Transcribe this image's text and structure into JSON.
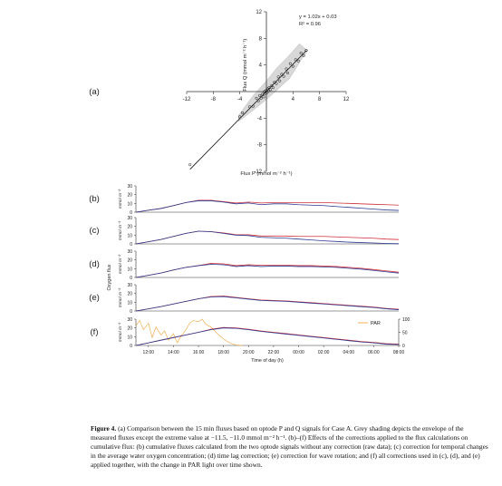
{
  "panel_labels": [
    "(a)",
    "(b)",
    "(c)",
    "(d)",
    "(e)",
    "(f)"
  ],
  "caption": {
    "fig_label": "Figure 4.",
    "text": "(a) Comparison between the 15 min fluxes based on optode P and Q signals for Case A. Grey shading depicts the envelope of the measured fluxes except the extreme value at −11.5, −11.0 mmol m⁻² h⁻¹. (b)–(f) Effects of the corrections applied to the flux calculations on cumulative flux: (b) cumulative fluxes calculated from the two optode signals without any correction (raw data); (c) correction for temporal changes in the average water oxygen concentration; (d) time lag correction; (e) correction for wave rotation; and (f) all corrections used in (c), (d), and (e) applied together, with the change in PAR light over time shown."
  },
  "colors": {
    "series_p": "#2b3a8f",
    "series_q": "#d0303a",
    "par": "#f0b050",
    "shading": "#d8d8d8",
    "axis": "#333333"
  },
  "chart_data": [
    {
      "type": "scatter",
      "panel": "(a)",
      "xlabel": "Flux P (mmol m⁻² h⁻¹)",
      "ylabel": "Flux Q (mmol m⁻² h⁻¹)",
      "xlim": [
        -12,
        12
      ],
      "ylim": [
        -12,
        12
      ],
      "xticks": [
        -12,
        -8,
        -4,
        4,
        8,
        12
      ],
      "yticks": [
        -12,
        -8,
        -4,
        4,
        8,
        12
      ],
      "equation": "y = 1.02x + 0.03",
      "r2": "R² = 0.96",
      "regression": {
        "slope": 1.02,
        "intercept": 0.03,
        "x_range": [
          -11.5,
          6.0
        ]
      },
      "shading_envelope": [
        [
          -4.2,
          -4.5
        ],
        [
          -2,
          -2.8
        ],
        [
          0,
          -1.2
        ],
        [
          2,
          0.6
        ],
        [
          3.5,
          2
        ],
        [
          5.5,
          5.2
        ],
        [
          6.2,
          6.1
        ],
        [
          5,
          7.2
        ],
        [
          3.2,
          5.2
        ],
        [
          1.6,
          3.6
        ],
        [
          0,
          1.6
        ],
        [
          -2,
          -0.6
        ],
        [
          -4.2,
          -3.6
        ]
      ],
      "points": [
        [
          -11.5,
          -11.0
        ],
        [
          -4.0,
          -3.8
        ],
        [
          -3.6,
          -3.2
        ],
        [
          -2.5,
          -2.3
        ],
        [
          -2.0,
          -2.2
        ],
        [
          -1.5,
          -1.0
        ],
        [
          -1.2,
          -1.4
        ],
        [
          -1.0,
          -0.6
        ],
        [
          -0.8,
          -1.0
        ],
        [
          -0.6,
          -0.4
        ],
        [
          -0.4,
          -0.8
        ],
        [
          -0.3,
          0.0
        ],
        [
          -0.2,
          -0.3
        ],
        [
          0.0,
          0.2
        ],
        [
          0.1,
          -0.2
        ],
        [
          0.2,
          0.4
        ],
        [
          0.3,
          0.1
        ],
        [
          0.4,
          0.6
        ],
        [
          0.6,
          0.3
        ],
        [
          0.8,
          0.9
        ],
        [
          1.0,
          0.6
        ],
        [
          1.2,
          1.4
        ],
        [
          1.5,
          1.2
        ],
        [
          1.8,
          2.2
        ],
        [
          2.0,
          1.6
        ],
        [
          2.3,
          2.6
        ],
        [
          2.6,
          2.3
        ],
        [
          3.0,
          3.4
        ],
        [
          3.2,
          2.8
        ],
        [
          3.6,
          4.2
        ],
        [
          4.0,
          3.8
        ],
        [
          4.4,
          4.8
        ],
        [
          4.8,
          4.6
        ],
        [
          5.2,
          5.8
        ],
        [
          5.6,
          5.4
        ],
        [
          6.0,
          6.2
        ]
      ]
    },
    {
      "type": "line",
      "panels": [
        "(b)",
        "(c)",
        "(d)",
        "(e)",
        "(f)"
      ],
      "ylabel_units": "mmol m⁻²",
      "shared_ylabel": "Oxygen flux",
      "xlabel": "Time of day (h)",
      "x_ticks": [
        "12:00",
        "14:00",
        "16:00",
        "18:00",
        "20:00",
        "22:00",
        "00:00",
        "02:00",
        "04:00",
        "06:00",
        "08:00"
      ],
      "x": [
        11,
        12,
        13,
        14,
        15,
        16,
        17,
        18,
        19,
        20,
        21,
        22,
        23,
        24,
        25,
        26,
        27,
        28,
        29,
        30,
        31,
        32
      ],
      "ylim": [
        0,
        30
      ],
      "yticks": [
        0,
        10,
        20,
        30
      ],
      "series_sets": {
        "(b)": {
          "P": [
            0,
            2.2,
            4.2,
            7.5,
            11,
            13,
            13,
            11.5,
            9.5,
            10.5,
            8.5,
            9.5,
            9.5,
            8.5,
            8,
            7.5,
            6.5,
            5.5,
            4.5,
            3.5,
            2.5,
            2
          ],
          "Q": [
            0,
            2.2,
            4.2,
            7.5,
            11,
            13.5,
            13.5,
            12,
            10.5,
            11.5,
            10.5,
            11,
            11,
            11,
            11,
            11,
            10.5,
            10,
            9.5,
            9,
            8.5,
            8
          ]
        },
        "(c)": {
          "P": [
            0,
            2.5,
            5,
            8.5,
            12,
            14.5,
            14,
            12,
            10,
            9.5,
            7.5,
            7,
            6.5,
            5.5,
            4.5,
            3.5,
            2.8,
            2,
            1.5,
            1,
            0.5,
            0.2
          ],
          "Q": [
            0,
            2.5,
            5,
            8.5,
            12,
            14.5,
            14,
            12.5,
            10.5,
            10.5,
            9,
            9,
            9,
            8.5,
            8.5,
            8.5,
            8,
            7.5,
            7,
            6.5,
            5.5,
            5
          ]
        },
        "(d)": {
          "P": [
            0,
            2.5,
            5,
            8.5,
            11.5,
            13.5,
            15,
            14.5,
            12.5,
            13.5,
            12.5,
            13,
            13,
            12.5,
            12.5,
            12,
            11.5,
            10.5,
            9.5,
            8,
            6.5,
            5
          ],
          "Q": [
            0,
            2.5,
            5,
            8.5,
            11.5,
            13.5,
            16,
            15.5,
            13.5,
            14.5,
            14,
            14,
            14,
            13.5,
            13.5,
            13,
            12.5,
            11.5,
            10.5,
            9,
            7.5,
            6
          ]
        },
        "(e)": {
          "P": [
            0,
            2.5,
            5,
            8,
            11,
            14,
            16,
            16.5,
            15,
            13.5,
            12,
            11.5,
            11,
            10,
            9,
            8,
            7,
            6,
            5,
            4,
            2.5,
            1.5
          ],
          "Q": [
            0,
            2.5,
            5,
            8,
            11,
            14,
            16.5,
            17,
            15.5,
            14,
            12.5,
            12,
            11.5,
            10.5,
            9.5,
            8.5,
            7.5,
            6.5,
            5.5,
            4.5,
            3,
            2
          ]
        },
        "(f)": {
          "P": [
            0,
            3,
            6,
            9,
            12,
            15,
            18,
            20,
            19.5,
            18,
            16,
            14.5,
            13,
            11.5,
            10,
            8.5,
            7,
            5.5,
            4,
            3,
            1.5,
            1
          ],
          "Q": [
            0,
            3,
            6,
            9,
            12,
            15,
            18.5,
            20.5,
            20,
            18.5,
            16.5,
            15,
            13.5,
            12,
            10.5,
            9,
            7.5,
            6,
            4.5,
            3.5,
            2,
            1.5
          ]
        }
      },
      "par": {
        "name": "PAR",
        "ylim": [
          0,
          100
        ],
        "yticks": [
          0,
          50,
          100
        ],
        "x": [
          11,
          11.3,
          11.6,
          12,
          12.3,
          12.6,
          13,
          13.3,
          13.6,
          14,
          14.3,
          14.6,
          15,
          15.3,
          15.6,
          16,
          16.3,
          16.6,
          17,
          17.3,
          17.6,
          18,
          18.3,
          18.6,
          19,
          19.5
        ],
        "values": [
          75,
          95,
          60,
          85,
          30,
          70,
          40,
          55,
          20,
          45,
          10,
          35,
          60,
          85,
          95,
          90,
          100,
          80,
          70,
          55,
          40,
          25,
          15,
          8,
          2,
          0
        ]
      }
    }
  ]
}
